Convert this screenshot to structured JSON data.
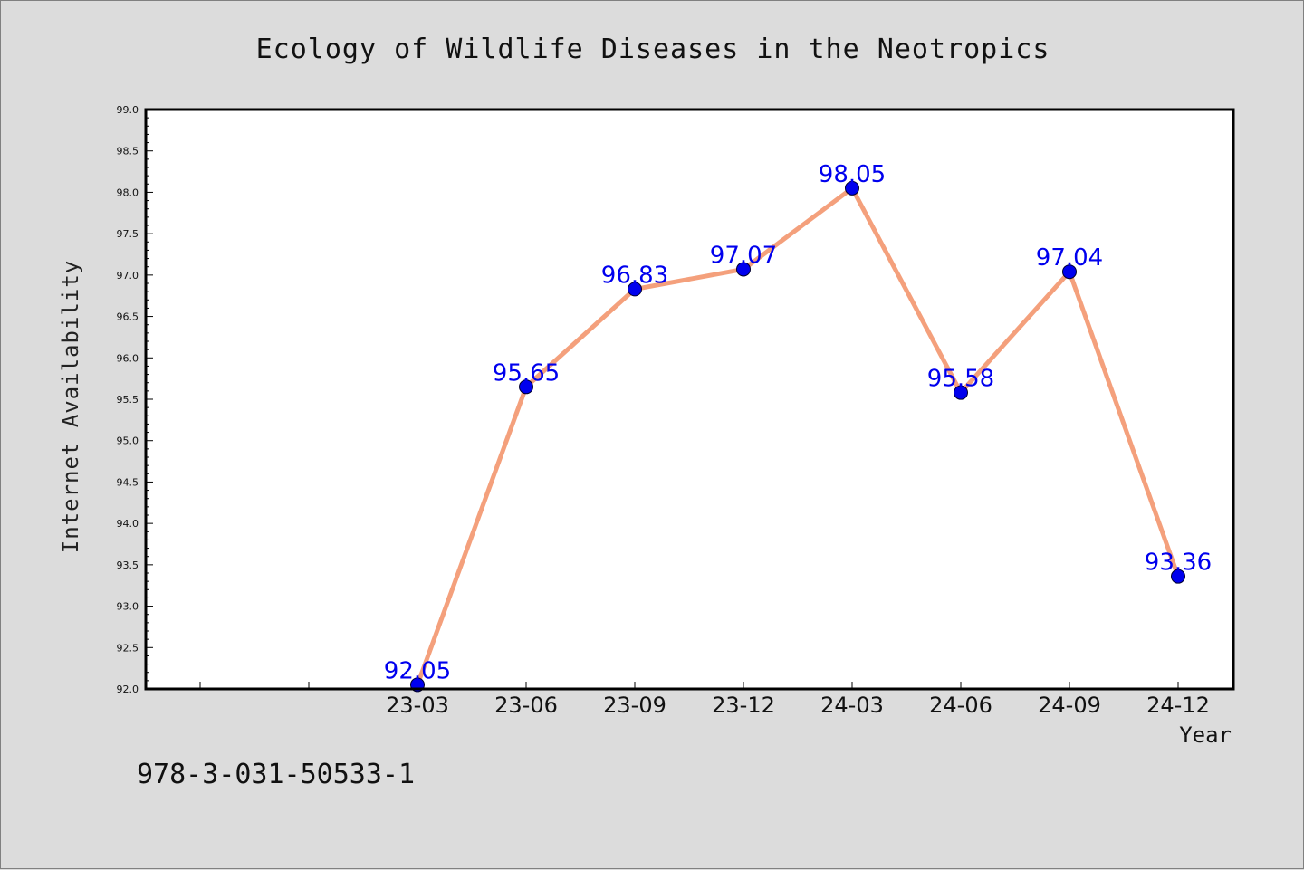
{
  "chart_data": {
    "type": "line",
    "title": "Ecology of Wildlife Diseases in the Neotropics",
    "xlabel": "Year",
    "ylabel": "Internet Availability",
    "categories": [
      "23-03",
      "23-06",
      "23-09",
      "23-12",
      "24-03",
      "24-06",
      "24-09",
      "24-12"
    ],
    "series": [
      {
        "values": [
          92.05,
          95.65,
          96.83,
          97.07,
          98.05,
          95.58,
          97.04,
          93.36
        ],
        "line_color": "#f4a07c",
        "marker_color": "#0000ee",
        "label_color": "#0000ee"
      }
    ],
    "ylim": [
      92.0,
      99.0
    ],
    "yticks": [
      "92.0",
      "92.5",
      "93.0",
      "93.5",
      "94.0",
      "94.5",
      "95.0",
      "95.5",
      "96.0",
      "96.5",
      "97.0",
      "97.5",
      "98.0",
      "98.5",
      "99.0"
    ],
    "grid": false,
    "legend": "none"
  },
  "footer": {
    "isbn": "978-3-031-50533-1"
  }
}
